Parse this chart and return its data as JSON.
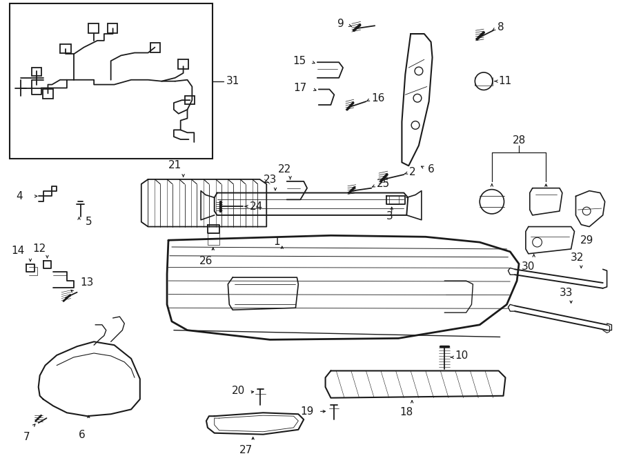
{
  "bg_color": "#ffffff",
  "line_color": "#1a1a1a",
  "fig_width": 9.0,
  "fig_height": 6.61,
  "dpi": 100,
  "lw": 1.0,
  "fontsize": 11
}
